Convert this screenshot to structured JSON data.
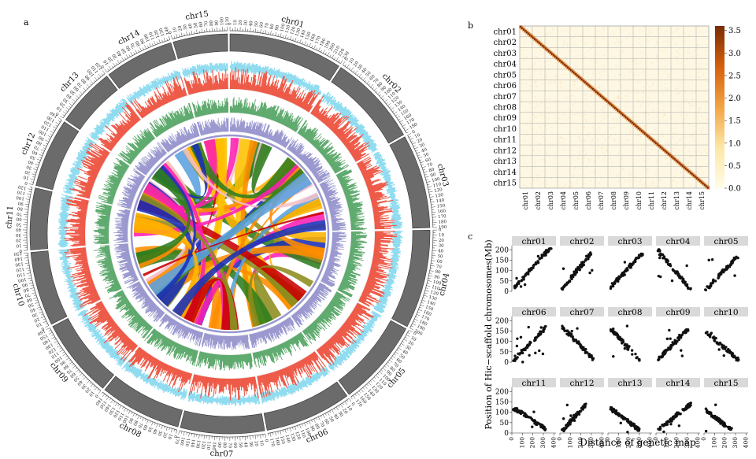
{
  "panel_labels": {
    "a": "a",
    "b": "b",
    "c": "c"
  },
  "colors": {
    "ideogram": "#6b6b6b",
    "track1": "#8fdcf0",
    "track2": "#ee5a48",
    "track3": "#5faa6e",
    "track4": "#9a98cf",
    "heat_low": "#fdf7e3",
    "heat_high": "#7a2b06",
    "panel_header": "#d9d9d9",
    "points": "#111111"
  },
  "chart_data": [
    {
      "type": "circos",
      "chromosomes": [
        {
          "name": "chr01",
          "length": 230
        },
        {
          "name": "chr02",
          "length": 185
        },
        {
          "name": "chr03",
          "length": 190
        },
        {
          "name": "chr04",
          "length": 200
        },
        {
          "name": "chr05",
          "length": 175
        },
        {
          "name": "chr06",
          "length": 175
        },
        {
          "name": "chr07",
          "length": 170
        },
        {
          "name": "chr08",
          "length": 165
        },
        {
          "name": "chr09",
          "length": 160
        },
        {
          "name": "chr10",
          "length": 150
        },
        {
          "name": "chr11",
          "length": 125
        },
        {
          "name": "chr12",
          "length": 140
        },
        {
          "name": "chr13",
          "length": 120
        },
        {
          "name": "chr14",
          "length": 140
        },
        {
          "name": "chr15",
          "length": 110
        }
      ],
      "tracks": [
        "light blue bars",
        "red bars",
        "green bars",
        "purple bars"
      ],
      "link_colors": [
        "#ffb300",
        "#ff1fb4",
        "#c80000",
        "#2e7d1e",
        "#1a2fb8",
        "#8c8c1e",
        "#ffc000",
        "#ff8c00",
        "#f5c0c8",
        "#5aa0e0"
      ]
    },
    {
      "type": "heatmap",
      "row_labels": [
        "chr01",
        "chr02",
        "chr03",
        "chr04",
        "chr05",
        "chr06",
        "chr07",
        "chr08",
        "chr09",
        "chr10",
        "chr11",
        "chr12",
        "chr13",
        "chr14",
        "chr15"
      ],
      "col_labels": [
        "chr01",
        "chr02",
        "chr03",
        "chr04",
        "chr05",
        "chr06",
        "chr07",
        "chr08",
        "chr09",
        "chr10",
        "chr11",
        "chr12",
        "chr13",
        "chr14",
        "chr15"
      ],
      "colorbar": {
        "min": 0.0,
        "max": 3.6,
        "ticks": [
          "0.0",
          "0.5",
          "1.0",
          "1.5",
          "2.0",
          "2.5",
          "3.0",
          "3.5"
        ]
      }
    },
    {
      "type": "scatter",
      "xlabel": "Distance of genetic map",
      "ylabel": "Position of Hic−scaffold chromosomes(Mb)",
      "xticks": [
        "0",
        "100",
        "200",
        "300",
        "400"
      ],
      "yticks": [
        "0",
        "50",
        "100",
        "150",
        "200"
      ],
      "xlim": [
        0,
        420
      ],
      "ylim": [
        0,
        220
      ],
      "panels": [
        {
          "name": "chr01",
          "dir": 1,
          "x0": 20,
          "x1": 370,
          "y0": 15,
          "y1": 212
        },
        {
          "name": "chr02",
          "dir": 1,
          "x0": 20,
          "x1": 300,
          "y0": 10,
          "y1": 185
        },
        {
          "name": "chr03",
          "dir": 1,
          "x0": 20,
          "x1": 330,
          "y0": 15,
          "y1": 185
        },
        {
          "name": "chr04",
          "dir": -1,
          "x0": 20,
          "x1": 330,
          "y0": 195,
          "y1": 10
        },
        {
          "name": "chr05",
          "dir": 1,
          "x0": 20,
          "x1": 320,
          "y0": 10,
          "y1": 170
        },
        {
          "name": "chr06",
          "dir": 1,
          "x0": 20,
          "x1": 330,
          "y0": 10,
          "y1": 170
        },
        {
          "name": "chr07",
          "dir": -1,
          "x0": 20,
          "x1": 330,
          "y0": 170,
          "y1": 10
        },
        {
          "name": "chr08",
          "dir": -1,
          "x0": 20,
          "x1": 300,
          "y0": 165,
          "y1": 10
        },
        {
          "name": "chr09",
          "dir": 1,
          "x0": 20,
          "x1": 300,
          "y0": 10,
          "y1": 160
        },
        {
          "name": "chr10",
          "dir": -1,
          "x0": 20,
          "x1": 330,
          "y0": 145,
          "y1": 10
        },
        {
          "name": "chr11",
          "dir": -1,
          "x0": 20,
          "x1": 320,
          "y0": 120,
          "y1": 20
        },
        {
          "name": "chr12",
          "dir": 1,
          "x0": 20,
          "x1": 250,
          "y0": 10,
          "y1": 140
        },
        {
          "name": "chr13",
          "dir": -1,
          "x0": 20,
          "x1": 300,
          "y0": 120,
          "y1": 15
        },
        {
          "name": "chr14",
          "dir": 1,
          "x0": 20,
          "x1": 330,
          "y0": 15,
          "y1": 140
        },
        {
          "name": "chr15",
          "dir": -1,
          "x0": 20,
          "x1": 260,
          "y0": 110,
          "y1": 15
        }
      ]
    }
  ]
}
